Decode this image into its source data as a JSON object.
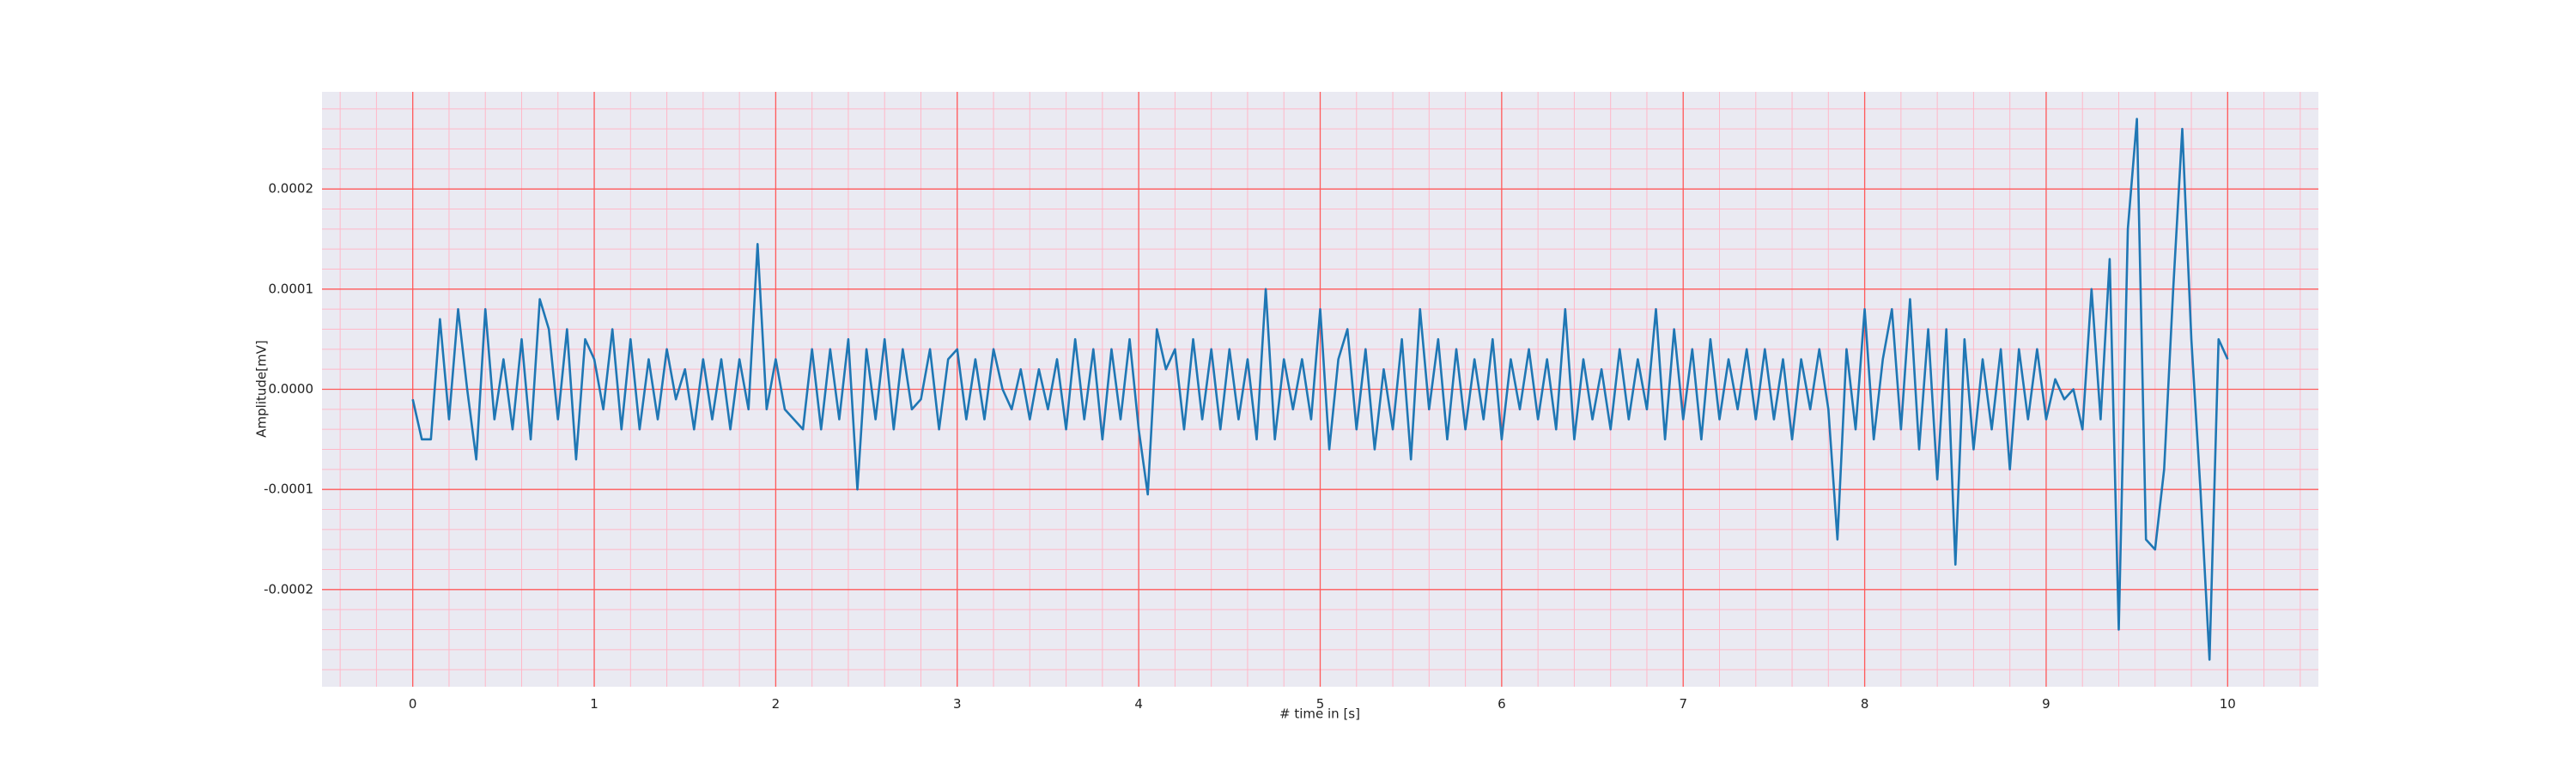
{
  "chart_data": {
    "type": "line",
    "xlabel": "# time in [s]",
    "ylabel": "Amplitude[mV]",
    "xlim": [
      -0.5,
      10.5
    ],
    "xticks": [
      0,
      1,
      2,
      3,
      4,
      5,
      6,
      7,
      8,
      9,
      10
    ],
    "ylim": [
      -0.000297,
      0.000297
    ],
    "yticks": [
      {
        "value": -0.0002,
        "label": "-0.0002"
      },
      {
        "value": -0.0001,
        "label": "-0.0001"
      },
      {
        "value": 0,
        "label": "0.0000"
      },
      {
        "value": 0.0001,
        "label": "0.0001"
      },
      {
        "value": 0.0002,
        "label": "0.0002"
      }
    ],
    "grid": true,
    "minor_grid": true,
    "grid_color": "#ff5a5a",
    "minor_grid_color": "#ffb8c8",
    "background": "#eaeaf2",
    "x": [
      0,
      0.05,
      0.1,
      0.15,
      0.2,
      0.25,
      0.3,
      0.35,
      0.4,
      0.45,
      0.5,
      0.55,
      0.6,
      0.65,
      0.7,
      0.75,
      0.8,
      0.85,
      0.9,
      0.95,
      1,
      1.05,
      1.1,
      1.15,
      1.2,
      1.25,
      1.3,
      1.35,
      1.4,
      1.45,
      1.5,
      1.55,
      1.6,
      1.65,
      1.7,
      1.75,
      1.8,
      1.85,
      1.9,
      1.95,
      2,
      2.05,
      2.1,
      2.15,
      2.2,
      2.25,
      2.3,
      2.35,
      2.4,
      2.45,
      2.5,
      2.55,
      2.6,
      2.65,
      2.7,
      2.75,
      2.8,
      2.85,
      2.9,
      2.95,
      3,
      3.05,
      3.1,
      3.15,
      3.2,
      3.25,
      3.3,
      3.35,
      3.4,
      3.45,
      3.5,
      3.55,
      3.6,
      3.65,
      3.7,
      3.75,
      3.8,
      3.85,
      3.9,
      3.95,
      4,
      4.05,
      4.1,
      4.15,
      4.2,
      4.25,
      4.3,
      4.35,
      4.4,
      4.45,
      4.5,
      4.55,
      4.6,
      4.65,
      4.7,
      4.75,
      4.8,
      4.85,
      4.9,
      4.95,
      5,
      5.05,
      5.1,
      5.15,
      5.2,
      5.25,
      5.3,
      5.35,
      5.4,
      5.45,
      5.5,
      5.55,
      5.6,
      5.65,
      5.7,
      5.75,
      5.8,
      5.85,
      5.9,
      5.95,
      6,
      6.05,
      6.1,
      6.15,
      6.2,
      6.25,
      6.3,
      6.35,
      6.4,
      6.45,
      6.5,
      6.55,
      6.6,
      6.65,
      6.7,
      6.75,
      6.8,
      6.85,
      6.9,
      6.95,
      7,
      7.05,
      7.1,
      7.15,
      7.2,
      7.25,
      7.3,
      7.35,
      7.4,
      7.45,
      7.5,
      7.55,
      7.6,
      7.65,
      7.7,
      7.75,
      7.8,
      7.85,
      7.9,
      7.95,
      8,
      8.05,
      8.1,
      8.15,
      8.2,
      8.25,
      8.3,
      8.35,
      8.4,
      8.45,
      8.5,
      8.55,
      8.6,
      8.65,
      8.7,
      8.75,
      8.8,
      8.85,
      8.9,
      8.95,
      9,
      9.05,
      9.1,
      9.15,
      9.2,
      9.25,
      9.3,
      9.35,
      9.4,
      9.45,
      9.5,
      9.55,
      9.6,
      9.65,
      9.7,
      9.75,
      9.8,
      9.85,
      9.9,
      9.95,
      10
    ],
    "series": [
      {
        "color": "#1f77b4",
        "values": [
          -1e-05,
          -5e-05,
          -5e-05,
          7e-05,
          -3e-05,
          8e-05,
          0,
          -7e-05,
          8e-05,
          -3e-05,
          3e-05,
          -4e-05,
          5e-05,
          -5e-05,
          9e-05,
          6e-05,
          -3e-05,
          6e-05,
          -7e-05,
          5e-05,
          3e-05,
          -2e-05,
          6e-05,
          -4e-05,
          5e-05,
          -4e-05,
          3e-05,
          -3e-05,
          4e-05,
          -1e-05,
          2e-05,
          -4e-05,
          3e-05,
          -3e-05,
          3e-05,
          -4e-05,
          3e-05,
          -2e-05,
          0.000145,
          -2e-05,
          3e-05,
          -2e-05,
          -3e-05,
          -4e-05,
          4e-05,
          -4e-05,
          4e-05,
          -3e-05,
          5e-05,
          -0.0001,
          4e-05,
          -3e-05,
          5e-05,
          -4e-05,
          4e-05,
          -2e-05,
          -1e-05,
          4e-05,
          -4e-05,
          3e-05,
          4e-05,
          -3e-05,
          3e-05,
          -3e-05,
          4e-05,
          0,
          -2e-05,
          2e-05,
          -3e-05,
          2e-05,
          -2e-05,
          3e-05,
          -4e-05,
          5e-05,
          -3e-05,
          4e-05,
          -5e-05,
          4e-05,
          -3e-05,
          5e-05,
          -4e-05,
          -0.000105,
          6e-05,
          2e-05,
          4e-05,
          -4e-05,
          5e-05,
          -3e-05,
          4e-05,
          -4e-05,
          4e-05,
          -3e-05,
          3e-05,
          -5e-05,
          0.0001,
          -5e-05,
          3e-05,
          -2e-05,
          3e-05,
          -3e-05,
          8e-05,
          -6e-05,
          3e-05,
          6e-05,
          -4e-05,
          4e-05,
          -6e-05,
          2e-05,
          -4e-05,
          5e-05,
          -7e-05,
          8e-05,
          -2e-05,
          5e-05,
          -5e-05,
          4e-05,
          -4e-05,
          3e-05,
          -3e-05,
          5e-05,
          -5e-05,
          3e-05,
          -2e-05,
          4e-05,
          -3e-05,
          3e-05,
          -4e-05,
          8e-05,
          -5e-05,
          3e-05,
          -3e-05,
          2e-05,
          -4e-05,
          4e-05,
          -3e-05,
          3e-05,
          -2e-05,
          8e-05,
          -5e-05,
          6e-05,
          -3e-05,
          4e-05,
          -5e-05,
          5e-05,
          -3e-05,
          3e-05,
          -2e-05,
          4e-05,
          -3e-05,
          4e-05,
          -3e-05,
          3e-05,
          -5e-05,
          3e-05,
          -2e-05,
          4e-05,
          -2e-05,
          -0.00015,
          4e-05,
          -4e-05,
          8e-05,
          -5e-05,
          3e-05,
          8e-05,
          -4e-05,
          9e-05,
          -6e-05,
          6e-05,
          -9e-05,
          6e-05,
          -0.000175,
          5e-05,
          -6e-05,
          3e-05,
          -4e-05,
          4e-05,
          -8e-05,
          4e-05,
          -3e-05,
          4e-05,
          -3e-05,
          1e-05,
          -1e-05,
          0,
          -4e-05,
          0.0001,
          -3e-05,
          0.00013,
          -0.00024,
          0.00016,
          0.00027,
          -0.00015,
          -0.00016,
          -8e-05,
          0.0001,
          0.00026,
          5e-05,
          -0.0001,
          -0.00027,
          5e-05,
          3e-05
        ]
      }
    ]
  }
}
